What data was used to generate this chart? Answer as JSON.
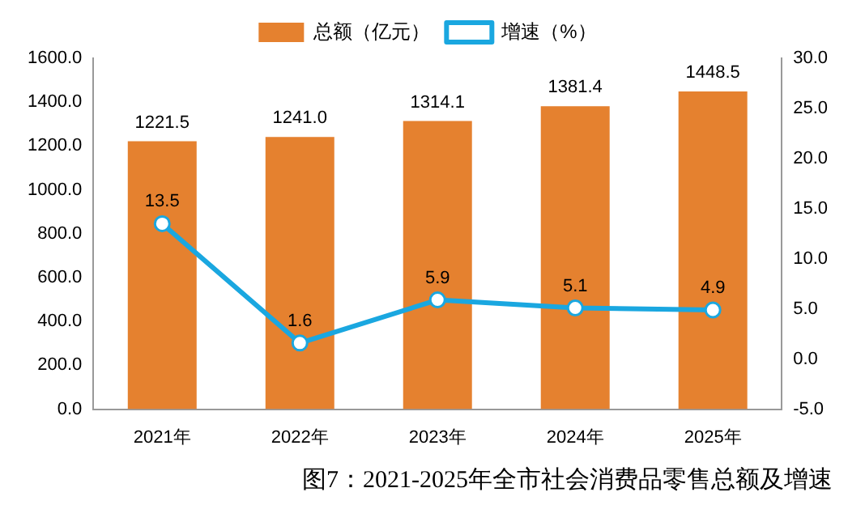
{
  "chart_data": {
    "type": "bar",
    "title": "图7：2021-2025年全市社会消费品零售总额及增速",
    "categories": [
      "2021年",
      "2022年",
      "2023年",
      "2024年",
      "2025年"
    ],
    "series": [
      {
        "name": "总额（亿元）",
        "color": "#e5812f",
        "values": [
          1221.5,
          1241.0,
          1314.1,
          1381.4,
          1448.5
        ],
        "value_labels": [
          "1221.5",
          "1241.0",
          "1314.1",
          "1381.4",
          "1448.5"
        ]
      },
      {
        "name": "增速（%）",
        "type": "line",
        "axis": "y2",
        "color": "#1aa7e0",
        "values": [
          13.5,
          1.6,
          5.9,
          5.1,
          4.9
        ],
        "value_labels": [
          "13.5",
          "1.6",
          "5.9",
          "5.1",
          "4.9"
        ]
      }
    ],
    "ylim": [
      0,
      1600
    ],
    "yticks": [
      {
        "value": 0,
        "label": "0.0"
      },
      {
        "value": 200,
        "label": "200.0"
      },
      {
        "value": 400,
        "label": "400.0"
      },
      {
        "value": 600,
        "label": "600.0"
      },
      {
        "value": 800,
        "label": "800.0"
      },
      {
        "value": 1000,
        "label": "1000.0"
      },
      {
        "value": 1200,
        "label": "1200.0"
      },
      {
        "value": 1400,
        "label": "1400.0"
      },
      {
        "value": 1600,
        "label": "1600.0"
      }
    ],
    "y2lim": [
      -5,
      30
    ],
    "y2ticks": [
      {
        "value": -5,
        "label": "-5.0"
      },
      {
        "value": 0,
        "label": "0.0"
      },
      {
        "value": 5,
        "label": "5.0"
      },
      {
        "value": 10,
        "label": "10.0"
      },
      {
        "value": 15,
        "label": "15.0"
      },
      {
        "value": 20,
        "label": "20.0"
      },
      {
        "value": 25,
        "label": "25.0"
      },
      {
        "value": 30,
        "label": "30.0"
      }
    ],
    "legend": "top",
    "grid": false,
    "marker": "circle",
    "line_style": "solid"
  }
}
